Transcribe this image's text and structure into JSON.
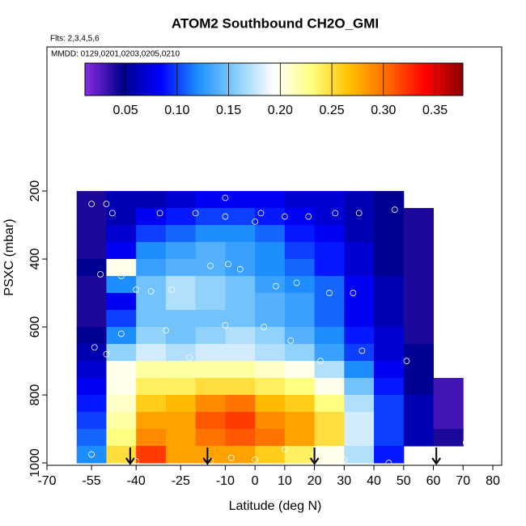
{
  "chart_data": {
    "type": "heatmap",
    "title": "ATOM2 Southbound CH2O_GMI",
    "subtitle": "Flts: 2,3,4,5,6",
    "note": "MMDD: 0129,0201,0203,0205,0210",
    "xlabel": "Latitude (deg N)",
    "ylabel": "PSXC (mbar)",
    "xlim": [
      -70,
      83
    ],
    "ylim": [
      1007,
      -224
    ],
    "xticks": [
      -70,
      -55,
      -40,
      -25,
      -10,
      0,
      10,
      20,
      30,
      40,
      50,
      60,
      70,
      80
    ],
    "yticks": [
      200,
      400,
      600,
      800,
      1000
    ],
    "lat_edges": [
      -60,
      -50,
      -40,
      -30,
      -20,
      -10,
      0,
      10,
      20,
      30,
      40,
      50,
      60,
      70
    ],
    "pressure_edges": [
      200,
      250,
      300,
      350,
      400,
      450,
      500,
      550,
      600,
      650,
      700,
      750,
      800,
      850,
      900,
      950,
      1000
    ],
    "values": [
      [
        0.04,
        0.06,
        0.06,
        0.07,
        0.08,
        0.08,
        0.08,
        0.07,
        0.07,
        0.06,
        0.05,
        null,
        null
      ],
      [
        0.04,
        0.06,
        0.08,
        0.09,
        0.1,
        0.1,
        0.09,
        0.08,
        0.07,
        0.06,
        0.05,
        0.04,
        null
      ],
      [
        0.04,
        0.07,
        0.1,
        0.11,
        0.12,
        0.12,
        0.11,
        0.09,
        0.08,
        0.06,
        0.05,
        0.04,
        null
      ],
      [
        0.04,
        0.08,
        0.12,
        0.13,
        0.14,
        0.13,
        0.12,
        0.1,
        0.09,
        0.07,
        0.05,
        0.04,
        null
      ],
      [
        0.05,
        0.2,
        0.13,
        0.14,
        0.14,
        0.13,
        0.12,
        0.11,
        0.09,
        0.07,
        0.05,
        0.04,
        null
      ],
      [
        0.04,
        0.12,
        0.15,
        0.17,
        0.16,
        0.15,
        0.13,
        0.12,
        0.11,
        0.08,
        0.06,
        0.04,
        null
      ],
      [
        0.04,
        0.08,
        0.15,
        0.17,
        0.16,
        0.15,
        0.14,
        0.13,
        0.11,
        0.08,
        0.06,
        0.04,
        null
      ],
      [
        0.04,
        0.1,
        0.15,
        0.15,
        0.15,
        0.15,
        0.14,
        0.13,
        0.11,
        0.08,
        0.06,
        0.04,
        null
      ],
      [
        0.05,
        0.12,
        0.16,
        0.15,
        0.16,
        0.17,
        0.16,
        0.14,
        0.12,
        0.09,
        0.07,
        0.04,
        null
      ],
      [
        0.06,
        0.16,
        0.18,
        0.17,
        0.18,
        0.18,
        0.17,
        0.16,
        0.13,
        0.1,
        0.07,
        0.05,
        null
      ],
      [
        0.07,
        0.2,
        0.22,
        0.22,
        0.22,
        0.22,
        0.21,
        0.2,
        0.17,
        0.12,
        0.08,
        0.05,
        null
      ],
      [
        0.08,
        0.2,
        0.24,
        0.24,
        0.25,
        0.25,
        0.24,
        0.23,
        0.2,
        0.15,
        0.09,
        0.05,
        0.03
      ],
      [
        0.09,
        0.21,
        0.26,
        0.27,
        0.29,
        0.3,
        0.27,
        0.26,
        0.23,
        0.17,
        0.1,
        0.06,
        0.03
      ],
      [
        0.1,
        0.22,
        0.28,
        0.28,
        0.31,
        0.32,
        0.29,
        0.28,
        0.25,
        0.18,
        0.1,
        0.06,
        0.03
      ],
      [
        0.11,
        0.23,
        0.29,
        0.28,
        0.3,
        0.31,
        0.3,
        0.28,
        0.25,
        0.18,
        0.1,
        0.06,
        0.04
      ],
      [
        0.12,
        0.25,
        0.32,
        0.28,
        0.28,
        0.28,
        0.26,
        0.24,
        0.2,
        0.17,
        0.09,
        null,
        null
      ]
    ],
    "clim": [
      0.0107,
      0.377
    ],
    "colorbar_ticks": [
      {
        "value": 0.05,
        "label": "0.05"
      },
      {
        "value": 0.1,
        "label": "0.10"
      },
      {
        "value": 0.15,
        "label": "0.15"
      },
      {
        "value": 0.2,
        "label": "0.20"
      },
      {
        "value": 0.25,
        "label": "0.25"
      },
      {
        "value": 0.3,
        "label": "0.30"
      },
      {
        "value": 0.35,
        "label": "0.35"
      }
    ],
    "colormap": [
      "#8a2be2",
      "#00008b",
      "#0000ff",
      "#1e90ff",
      "#87cefa",
      "#ffffff",
      "#ffff80",
      "#ffc000",
      "#ff6a00",
      "#ff0000",
      "#8b0000"
    ],
    "observations": {
      "x": [
        -55,
        -50,
        -48,
        -32,
        -20,
        -10,
        -10,
        0,
        2,
        10,
        18,
        27,
        35,
        47,
        -52,
        -48,
        -45,
        -40,
        -35,
        -28,
        -15,
        -9,
        -5,
        7,
        14,
        25,
        33,
        -54,
        -50,
        -45,
        -30,
        -22,
        -10,
        3,
        12,
        22,
        36,
        51,
        -55,
        -40,
        -15,
        -8,
        0,
        10,
        20,
        30,
        45,
        60,
        71
      ],
      "y": [
        238,
        238,
        265,
        265,
        265,
        220,
        275,
        290,
        265,
        275,
        275,
        265,
        265,
        255,
        445,
        430,
        450,
        490,
        495,
        490,
        420,
        415,
        430,
        480,
        470,
        500,
        500,
        660,
        680,
        620,
        610,
        690,
        595,
        600,
        640,
        700,
        670,
        700,
        975,
        995,
        995,
        985,
        990,
        960,
        975,
        990,
        1000,
        980,
        940
      ]
    },
    "arrows": [
      -42,
      -16,
      20,
      61
    ]
  }
}
